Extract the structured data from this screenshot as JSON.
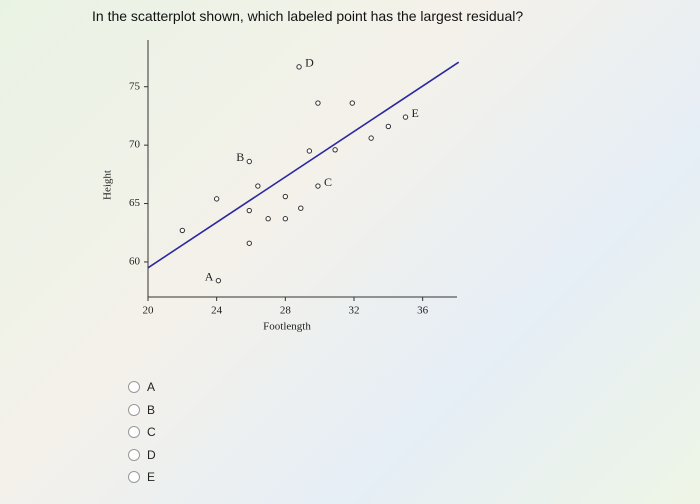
{
  "question": "In the scatterplot shown, which labeled point has the largest residual?",
  "chart_data": {
    "type": "scatter",
    "xlabel": "Footlength",
    "ylabel": "Height",
    "x": [
      28.8,
      29.9,
      31.9,
      35.0,
      34.0,
      33.0,
      30.9,
      29.4,
      25.9,
      26.4,
      29.9,
      24.0,
      28.0,
      25.9,
      28.9,
      27.0,
      28.0,
      22.0,
      25.9,
      24.1
    ],
    "values": [
      76.7,
      73.6,
      73.6,
      72.4,
      71.6,
      70.6,
      69.6,
      69.5,
      68.6,
      66.5,
      66.5,
      65.4,
      65.6,
      64.4,
      64.6,
      63.7,
      63.7,
      62.7,
      61.6,
      58.4
    ],
    "point_labels": [
      "D",
      null,
      null,
      "E",
      null,
      null,
      null,
      null,
      "B",
      null,
      "C",
      null,
      null,
      null,
      null,
      null,
      null,
      null,
      null,
      "A"
    ],
    "fit_line": {
      "x": [
        20,
        38.1
      ],
      "y": [
        59.5,
        77.1
      ],
      "color": "#2a2aa0"
    },
    "color": "#333333",
    "xlim": [
      20,
      38
    ],
    "ylim": [
      57,
      79
    ],
    "xticks": [
      20,
      24,
      28,
      32,
      36
    ],
    "yticks": [
      60,
      65,
      70,
      75
    ]
  },
  "options": [
    "A",
    "B",
    "C",
    "D",
    "E"
  ]
}
